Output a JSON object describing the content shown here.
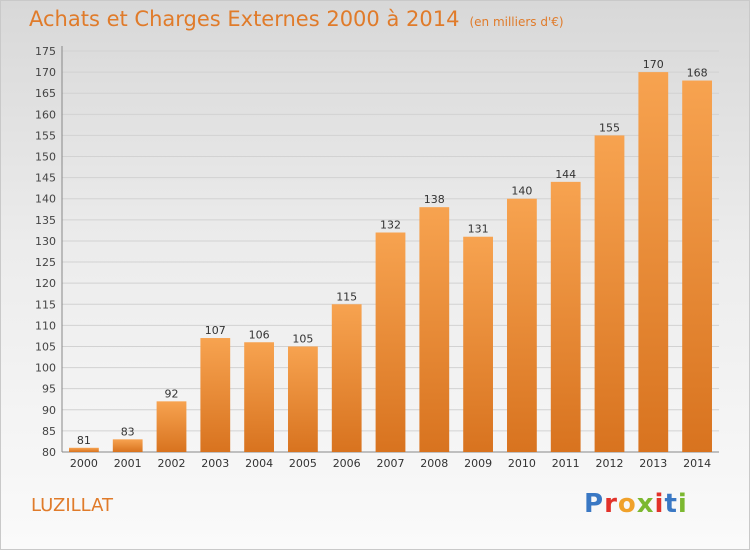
{
  "title": "Achats et Charges Externes 2000 à 2014",
  "unit": "(en milliers d'€)",
  "location": "LUZILLAT",
  "brand": "Proxiti",
  "brand_colors": [
    "#3a78c4",
    "#e2322a",
    "#f0a12a",
    "#7cb830",
    "#e2322a",
    "#3a78c4",
    "#7cb830"
  ],
  "chart_data": {
    "type": "bar",
    "categories": [
      "2000",
      "2001",
      "2002",
      "2003",
      "2004",
      "2005",
      "2006",
      "2007",
      "2008",
      "2009",
      "2010",
      "2011",
      "2012",
      "2013",
      "2014"
    ],
    "values": [
      81,
      83,
      92,
      107,
      106,
      105,
      115,
      132,
      138,
      131,
      140,
      144,
      155,
      170,
      168
    ],
    "ylim": [
      80,
      175
    ],
    "ytick_step": 5,
    "grid": true,
    "bar_color_top": "#f7a350",
    "bar_color_bottom": "#d8731f"
  }
}
